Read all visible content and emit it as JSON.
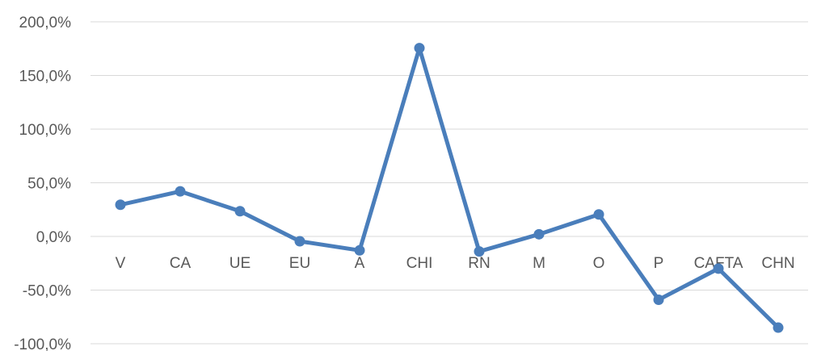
{
  "chart_data": {
    "type": "line",
    "title": "",
    "xlabel": "",
    "ylabel": "",
    "categories": [
      "V",
      "CA",
      "UE",
      "EU",
      "A",
      "CHI",
      "RN",
      "M",
      "O",
      "P",
      "CAFTA",
      "CHN"
    ],
    "series": [
      {
        "values": [
          29.5,
          42.0,
          23.5,
          -4.5,
          -13.0,
          175.5,
          -14.0,
          2.0,
          20.5,
          -59.0,
          -30.0,
          -85.0
        ],
        "color": "#4a7ebb"
      }
    ],
    "y_ticks": [
      "200,0%",
      "150,0%",
      "100,0%",
      "50,0%",
      "0,0%",
      "-50,0%",
      "-100,0%"
    ],
    "y_tick_values": [
      200,
      150,
      100,
      50,
      0,
      -50,
      -100
    ],
    "ylim": [
      -100,
      200
    ],
    "grid": true,
    "legend": "none"
  }
}
